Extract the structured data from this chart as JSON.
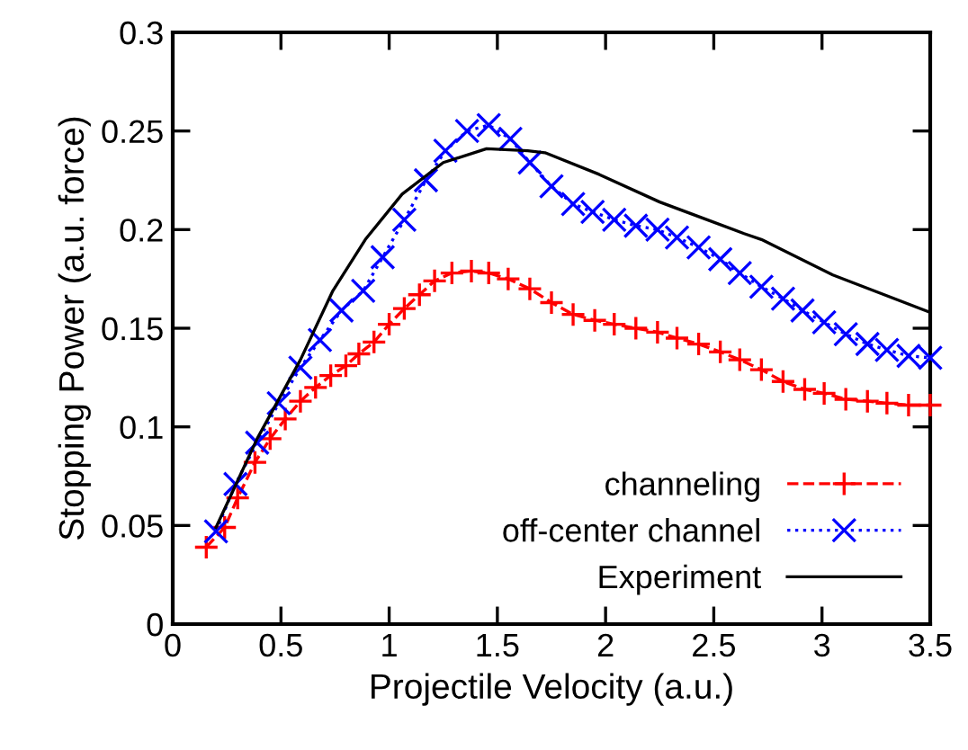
{
  "chart_data": {
    "type": "line",
    "xlabel": "Projectile Velocity (a.u.)",
    "ylabel": "Stopping Power (a.u. force)",
    "xlim": [
      0,
      3.5
    ],
    "ylim": [
      0,
      0.3
    ],
    "xticks": [
      0,
      0.5,
      1,
      1.5,
      2,
      2.5,
      3,
      3.5
    ],
    "yticks": [
      0,
      0.05,
      0.1,
      0.15,
      0.2,
      0.25,
      0.3
    ],
    "grid": false,
    "legend": "bottom right",
    "series": [
      {
        "name": "channeling",
        "color": "#ff0000",
        "marker": "cross",
        "line_style": "dashed",
        "x": [
          0.155,
          0.24,
          0.3,
          0.38,
          0.45,
          0.52,
          0.59,
          0.66,
          0.73,
          0.8,
          0.86,
          0.93,
          1.0,
          1.07,
          1.14,
          1.21,
          1.29,
          1.38,
          1.46,
          1.55,
          1.65,
          1.75,
          1.85,
          1.95,
          2.04,
          2.14,
          2.24,
          2.33,
          2.43,
          2.53,
          2.62,
          2.72,
          2.82,
          2.92,
          3.01,
          3.11,
          3.21,
          3.3,
          3.4,
          3.5
        ],
        "values": [
          0.039,
          0.049,
          0.064,
          0.082,
          0.094,
          0.104,
          0.113,
          0.12,
          0.126,
          0.131,
          0.137,
          0.143,
          0.152,
          0.16,
          0.167,
          0.174,
          0.178,
          0.179,
          0.178,
          0.175,
          0.17,
          0.163,
          0.157,
          0.154,
          0.152,
          0.15,
          0.148,
          0.145,
          0.142,
          0.138,
          0.134,
          0.129,
          0.123,
          0.119,
          0.117,
          0.114,
          0.113,
          0.112,
          0.111,
          0.111
        ]
      },
      {
        "name": "off-center channel",
        "color": "#0000ff",
        "marker": "x",
        "line_style": "dotted",
        "x": [
          0.2,
          0.29,
          0.39,
          0.49,
          0.59,
          0.68,
          0.78,
          0.88,
          0.97,
          1.07,
          1.17,
          1.26,
          1.36,
          1.46,
          1.56,
          1.65,
          1.75,
          1.85,
          1.94,
          2.04,
          2.14,
          2.24,
          2.33,
          2.43,
          2.53,
          2.62,
          2.72,
          2.82,
          2.91,
          3.01,
          3.11,
          3.21,
          3.3,
          3.4,
          3.5
        ],
        "values": [
          0.047,
          0.071,
          0.092,
          0.112,
          0.13,
          0.144,
          0.159,
          0.169,
          0.186,
          0.205,
          0.225,
          0.24,
          0.25,
          0.253,
          0.246,
          0.234,
          0.222,
          0.213,
          0.209,
          0.205,
          0.202,
          0.2,
          0.196,
          0.191,
          0.185,
          0.178,
          0.171,
          0.165,
          0.159,
          0.153,
          0.147,
          0.142,
          0.139,
          0.136,
          0.135
        ]
      },
      {
        "name": "Experiment",
        "color": "#000000",
        "marker": "none",
        "line_style": "solid",
        "x": [
          0.2,
          0.39,
          0.59,
          0.74,
          0.89,
          1.06,
          1.25,
          1.45,
          1.64,
          1.72,
          1.97,
          2.25,
          2.64,
          2.72,
          3.05,
          3.5
        ],
        "values": [
          0.049,
          0.094,
          0.134,
          0.169,
          0.195,
          0.218,
          0.234,
          0.241,
          0.24,
          0.239,
          0.228,
          0.214,
          0.198,
          0.195,
          0.177,
          0.158
        ]
      }
    ]
  }
}
